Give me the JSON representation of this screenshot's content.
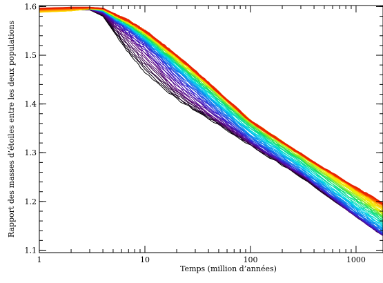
{
  "chart_data": {
    "type": "line",
    "xlabel": "Temps (million d’années)",
    "ylabel": "Rapport des masses d’étoiles entre les deux populations",
    "x_scale": "log",
    "y_scale": "linear",
    "xlim": [
      1,
      1800
    ],
    "ylim": [
      1.095,
      1.602
    ],
    "x_ticks": [
      {
        "value": 1,
        "label": "1"
      },
      {
        "value": 10,
        "label": "10"
      },
      {
        "value": 100,
        "label": "100"
      },
      {
        "value": 1000,
        "label": "1000"
      }
    ],
    "y_ticks": [
      {
        "value": 1.1,
        "label": "1.1"
      },
      {
        "value": 1.2,
        "label": "1.2"
      },
      {
        "value": 1.3,
        "label": "1.3"
      },
      {
        "value": 1.4,
        "label": "1.4"
      },
      {
        "value": 1.5,
        "label": "1.5"
      },
      {
        "value": 1.6,
        "label": "1.6"
      }
    ],
    "grid": false,
    "legend": "none",
    "color_scheme": [
      "#000000",
      "#5a007a",
      "#3a1fd0",
      "#0a7cf0",
      "#00d8e8",
      "#10e060",
      "#d8f000",
      "#ffe000",
      "#ff8000",
      "#e82000"
    ],
    "series": [
      {
        "color": "#000000",
        "x": [
          1,
          2,
          3,
          4,
          5,
          7,
          10,
          20,
          40,
          100,
          300,
          1000,
          1800
        ],
        "y": [
          1.592,
          1.593,
          1.593,
          1.58,
          1.55,
          1.505,
          1.465,
          1.41,
          1.37,
          1.315,
          1.25,
          1.17,
          1.13
        ]
      },
      {
        "color": "#5a007a",
        "x": [
          1,
          2,
          3,
          4,
          5,
          7,
          10,
          20,
          40,
          100,
          300,
          1000,
          1800
        ],
        "y": [
          1.592,
          1.593,
          1.594,
          1.585,
          1.565,
          1.535,
          1.5,
          1.43,
          1.38,
          1.32,
          1.255,
          1.17,
          1.13
        ]
      },
      {
        "color": "#3a1fd0",
        "x": [
          1,
          2,
          3,
          4,
          5,
          7,
          10,
          20,
          40,
          100,
          300,
          1000,
          1800
        ],
        "y": [
          1.592,
          1.593,
          1.595,
          1.588,
          1.573,
          1.55,
          1.522,
          1.455,
          1.395,
          1.325,
          1.258,
          1.172,
          1.132
        ]
      },
      {
        "color": "#0a7cf0",
        "x": [
          1,
          2,
          3,
          4,
          5,
          7,
          10,
          20,
          40,
          100,
          300,
          1000,
          1800
        ],
        "y": [
          1.591,
          1.593,
          1.595,
          1.59,
          1.576,
          1.556,
          1.53,
          1.47,
          1.41,
          1.335,
          1.265,
          1.18,
          1.14
        ]
      },
      {
        "color": "#00d8e8",
        "x": [
          1,
          2,
          3,
          4,
          5,
          7,
          10,
          20,
          40,
          100,
          300,
          1000,
          1800
        ],
        "y": [
          1.591,
          1.592,
          1.595,
          1.591,
          1.578,
          1.56,
          1.535,
          1.478,
          1.42,
          1.345,
          1.275,
          1.19,
          1.15
        ]
      },
      {
        "color": "#10e060",
        "x": [
          1,
          2,
          3,
          4,
          5,
          7,
          10,
          20,
          40,
          100,
          300,
          1000,
          1800
        ],
        "y": [
          1.59,
          1.592,
          1.595,
          1.592,
          1.58,
          1.563,
          1.54,
          1.485,
          1.43,
          1.355,
          1.285,
          1.205,
          1.165
        ]
      },
      {
        "color": "#d8f000",
        "x": [
          1,
          2,
          3,
          4,
          5,
          7,
          10,
          20,
          40,
          100,
          300,
          1000,
          1800
        ],
        "y": [
          1.589,
          1.591,
          1.595,
          1.593,
          1.582,
          1.566,
          1.545,
          1.492,
          1.438,
          1.362,
          1.293,
          1.215,
          1.175
        ]
      },
      {
        "color": "#ffe000",
        "x": [
          1,
          2,
          3,
          4,
          5,
          7,
          10,
          20,
          40,
          100,
          300,
          1000,
          1800
        ],
        "y": [
          1.588,
          1.591,
          1.596,
          1.594,
          1.584,
          1.569,
          1.548,
          1.497,
          1.442,
          1.366,
          1.298,
          1.222,
          1.185
        ]
      },
      {
        "color": "#ff8000",
        "x": [
          1,
          2,
          3,
          4,
          5,
          7,
          10,
          20,
          40,
          100,
          300,
          1000,
          1800
        ],
        "y": [
          1.593,
          1.595,
          1.597,
          1.595,
          1.585,
          1.57,
          1.549,
          1.498,
          1.442,
          1.364,
          1.296,
          1.225,
          1.192
        ]
      },
      {
        "color": "#e82000",
        "x": [
          1,
          2,
          3,
          4,
          5,
          7,
          10,
          20,
          40,
          100,
          300,
          1000,
          1800
        ],
        "y": [
          1.596,
          1.598,
          1.598,
          1.596,
          1.586,
          1.571,
          1.55,
          1.5,
          1.443,
          1.365,
          1.297,
          1.228,
          1.196
        ]
      }
    ]
  }
}
